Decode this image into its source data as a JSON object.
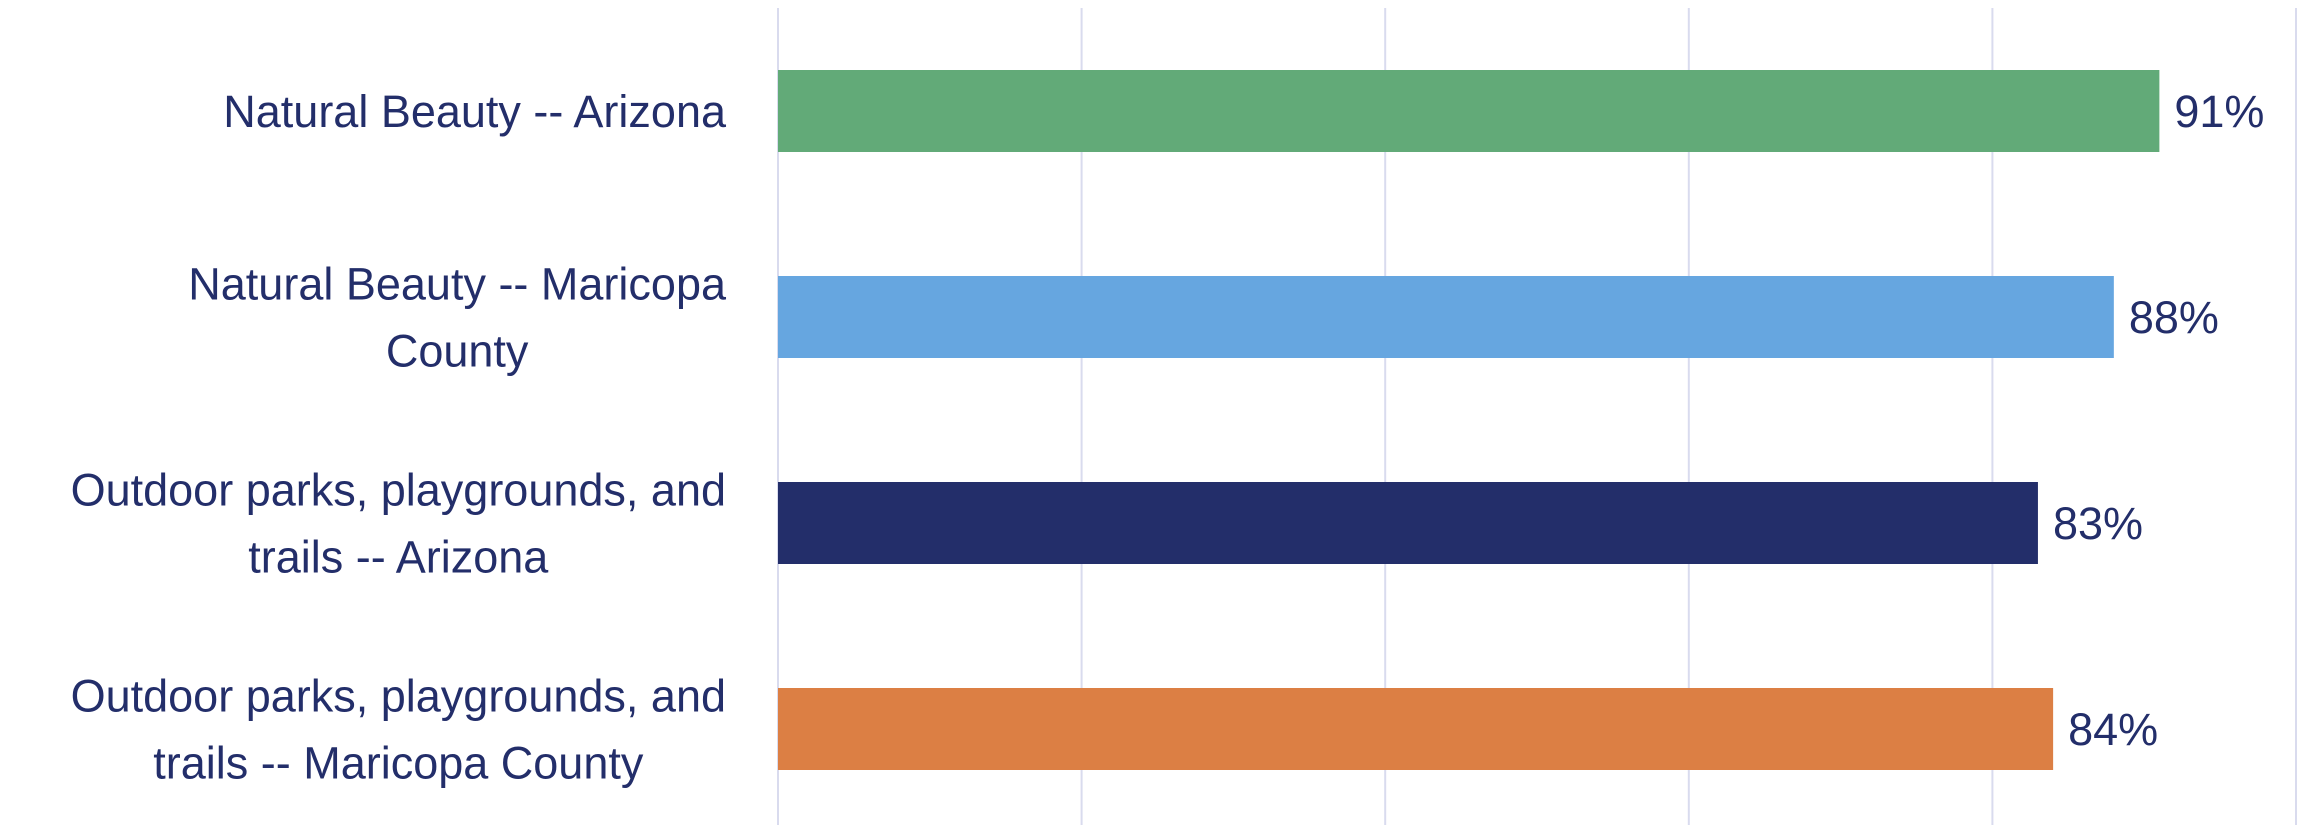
{
  "chart_data": {
    "type": "bar",
    "orientation": "horizontal",
    "categories": [
      "Natural Beauty -- Arizona",
      "Natural Beauty -- Maricopa County",
      "Outdoor parks, playgrounds, and trails -- Arizona",
      "Outdoor parks, playgrounds, and trails -- Maricopa County"
    ],
    "category_label_lines": [
      [
        "Natural Beauty -- Arizona"
      ],
      [
        "Natural Beauty -- Maricopa",
        "County"
      ],
      [
        "Outdoor parks, playgrounds, and",
        "trails -- Arizona"
      ],
      [
        "Outdoor parks, playgrounds, and",
        "trails -- Maricopa County"
      ]
    ],
    "values": [
      91,
      88,
      83,
      84
    ],
    "data_labels": [
      "91%",
      "88%",
      "83%",
      "84%"
    ],
    "bar_colors": [
      "#62AA78",
      "#66A6E0",
      "#232E6A",
      "#DC7F44"
    ],
    "label_color": "#232E6A",
    "grid_color": "#D9DBEE",
    "xlim": [
      0,
      100
    ],
    "x_grid_ticks": [
      0,
      20,
      40,
      60,
      80,
      100
    ],
    "grid": true,
    "title": "",
    "xlabel": "",
    "ylabel": ""
  }
}
